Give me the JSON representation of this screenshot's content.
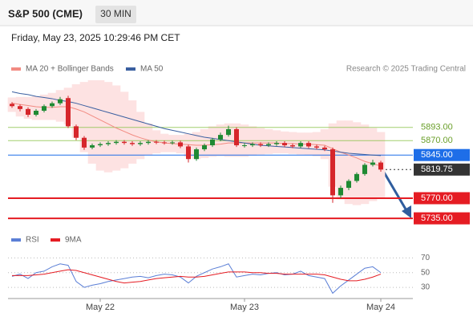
{
  "chart_data": {
    "type": "candlestick",
    "title": "S&P 500 (CME)",
    "interval": "30 MIN",
    "subtitle": "Friday, May 23, 2025 10:29:46 PM CET",
    "source": "Research © 2025 Trading Central",
    "up_color": "#1f8a33",
    "down_color": "#d6262b",
    "categories": [
      null,
      null,
      null,
      null,
      null,
      null,
      null,
      null,
      null,
      null,
      null,
      "May 22",
      null,
      null,
      null,
      null,
      null,
      null,
      null,
      null,
      null,
      null,
      null,
      null,
      null,
      null,
      null,
      null,
      null,
      "May 23",
      null,
      null,
      null,
      null,
      null,
      null,
      null,
      null,
      null,
      null,
      null,
      null,
      null,
      null,
      null,
      null,
      "May 24"
    ],
    "open": [
      5934,
      5930,
      5925,
      5915,
      5922,
      5930,
      5935,
      5944,
      5895,
      5875,
      5858,
      5862,
      5864,
      5866,
      5868,
      5866,
      5864,
      5866,
      5868,
      5867,
      5866,
      5867,
      5860,
      5838,
      5855,
      5862,
      5872,
      5880,
      5890,
      5862,
      5862,
      5864,
      5862,
      5864,
      5866,
      5862,
      5860,
      5866,
      5860,
      5858,
      5855,
      5775,
      5788,
      5800,
      5812,
      5828,
      5832
    ],
    "high": [
      5937,
      5933,
      5928,
      5925,
      5933,
      5938,
      5946,
      5948,
      5898,
      5878,
      5865,
      5867,
      5869,
      5871,
      5871,
      5869,
      5869,
      5871,
      5871,
      5870,
      5870,
      5870,
      5863,
      5858,
      5865,
      5875,
      5884,
      5896,
      5893,
      5866,
      5867,
      5867,
      5867,
      5869,
      5869,
      5865,
      5869,
      5869,
      5863,
      5861,
      5858,
      5792,
      5803,
      5815,
      5831,
      5837,
      5835
    ],
    "low": [
      5927,
      5921,
      5911,
      5912,
      5919,
      5927,
      5932,
      5892,
      5871,
      5854,
      5855,
      5859,
      5861,
      5863,
      5863,
      5861,
      5861,
      5863,
      5864,
      5863,
      5863,
      5857,
      5832,
      5835,
      5852,
      5859,
      5869,
      5877,
      5859,
      5858,
      5859,
      5859,
      5859,
      5861,
      5859,
      5857,
      5857,
      5857,
      5855,
      5852,
      5762,
      5770,
      5784,
      5797,
      5809,
      5825,
      5816
    ],
    "close": [
      5930,
      5925,
      5915,
      5922,
      5930,
      5935,
      5942,
      5895,
      5875,
      5858,
      5862,
      5864,
      5866,
      5868,
      5866,
      5864,
      5866,
      5868,
      5867,
      5866,
      5867,
      5860,
      5838,
      5855,
      5862,
      5872,
      5880,
      5890,
      5862,
      5862,
      5864,
      5862,
      5864,
      5866,
      5862,
      5860,
      5866,
      5860,
      5858,
      5855,
      5775,
      5788,
      5800,
      5812,
      5828,
      5832,
      5819.75
    ],
    "series": [
      {
        "name": "MA 20 + Bollinger Bands",
        "color": "#f28b82",
        "band_color": "#fde2e2",
        "values": [
          5935,
          5933,
          5931,
          5929,
          5928,
          5928,
          5929,
          5929,
          5925,
          5920,
          5913,
          5906,
          5899,
          5892,
          5886,
          5880,
          5875,
          5871,
          5868,
          5866,
          5865,
          5864,
          5863,
          5862,
          5862,
          5863,
          5864,
          5866,
          5866,
          5866,
          5866,
          5866,
          5866,
          5866,
          5865,
          5865,
          5864,
          5864,
          5863,
          5862,
          5856,
          5850,
          5845,
          5840,
          5834,
          5830,
          5826
        ],
        "upper": [
          5945,
          5946,
          5946,
          5947,
          5950,
          5953,
          5958,
          5962,
          5968,
          5972,
          5975,
          5975,
          5972,
          5966,
          5955,
          5940,
          5920,
          5900,
          5888,
          5882,
          5880,
          5880,
          5882,
          5885,
          5890,
          5895,
          5898,
          5900,
          5900,
          5898,
          5895,
          5892,
          5890,
          5888,
          5886,
          5885,
          5884,
          5884,
          5885,
          5890,
          5900,
          5905,
          5905,
          5902,
          5898,
          5892,
          5885
        ],
        "lower": [
          5920,
          5912,
          5908,
          5906,
          5906,
          5906,
          5903,
          5898,
          5875,
          5850,
          5830,
          5818,
          5815,
          5818,
          5822,
          5830,
          5838,
          5845,
          5848,
          5850,
          5850,
          5848,
          5842,
          5838,
          5840,
          5842,
          5843,
          5842,
          5842,
          5842,
          5844,
          5846,
          5847,
          5848,
          5848,
          5847,
          5846,
          5845,
          5843,
          5838,
          5790,
          5768,
          5760,
          5758,
          5760,
          5765,
          5770
        ]
      },
      {
        "name": "MA 50",
        "color": "#3a5fa0",
        "values": [
          5955,
          5952,
          5950,
          5947,
          5945,
          5943,
          5940,
          5938,
          5935,
          5931,
          5927,
          5923,
          5919,
          5915,
          5911,
          5907,
          5903,
          5899,
          5895,
          5891,
          5888,
          5885,
          5882,
          5879,
          5876,
          5874,
          5872,
          5870,
          5868,
          5866,
          5864,
          5862,
          5861,
          5860,
          5859,
          5858,
          5857,
          5856,
          5855,
          5854,
          5852,
          5850,
          5848,
          5847,
          5846,
          5845,
          5844
        ]
      }
    ],
    "ylim": [
      5710,
      5975
    ],
    "levels": [
      {
        "value": 5893,
        "label": "5893.00",
        "color": "#8bc34a",
        "line_style": "solid",
        "label_style": "text"
      },
      {
        "value": 5870,
        "label": "5870.00",
        "color": "#8bc34a",
        "line_style": "solid",
        "label_style": "text"
      },
      {
        "value": 5845,
        "label": "5845.00",
        "color": "#1e6ee8",
        "line_style": "solid",
        "label_style": "box"
      },
      {
        "value": 5819.75,
        "label": "5819.75",
        "color": "#333333",
        "line_style": "dotted",
        "label_style": "box"
      },
      {
        "value": 5770,
        "label": "5770.00",
        "color": "#e51c23",
        "line_style": "thick",
        "label_style": "box"
      },
      {
        "value": 5735,
        "label": "5735.00",
        "color": "#e51c23",
        "line_style": "thick",
        "label_style": "box"
      }
    ],
    "rsi": {
      "ylim": [
        17,
        77
      ],
      "yticks": [
        30,
        50,
        70
      ],
      "series": [
        {
          "name": "RSI",
          "color": "#5b7fd6",
          "values": [
            45,
            48,
            42,
            50,
            52,
            58,
            62,
            60,
            38,
            30,
            33,
            35,
            38,
            40,
            42,
            44,
            45,
            43,
            46,
            48,
            47,
            44,
            36,
            45,
            50,
            55,
            58,
            62,
            44,
            46,
            48,
            47,
            49,
            50,
            47,
            48,
            52,
            46,
            44,
            42,
            22,
            32,
            40,
            48,
            56,
            58,
            50
          ]
        },
        {
          "name": "9MA",
          "color": "#e51c23",
          "values": [
            46,
            46,
            46,
            47,
            48,
            50,
            52,
            54,
            53,
            50,
            47,
            44,
            41,
            38,
            36,
            37,
            38,
            40,
            42,
            43,
            44,
            45,
            44,
            44,
            45,
            47,
            49,
            51,
            51,
            51,
            50,
            50,
            49,
            49,
            48,
            48,
            48,
            48,
            48,
            47,
            44,
            41,
            39,
            39,
            41,
            44,
            48
          ]
        }
      ]
    }
  }
}
